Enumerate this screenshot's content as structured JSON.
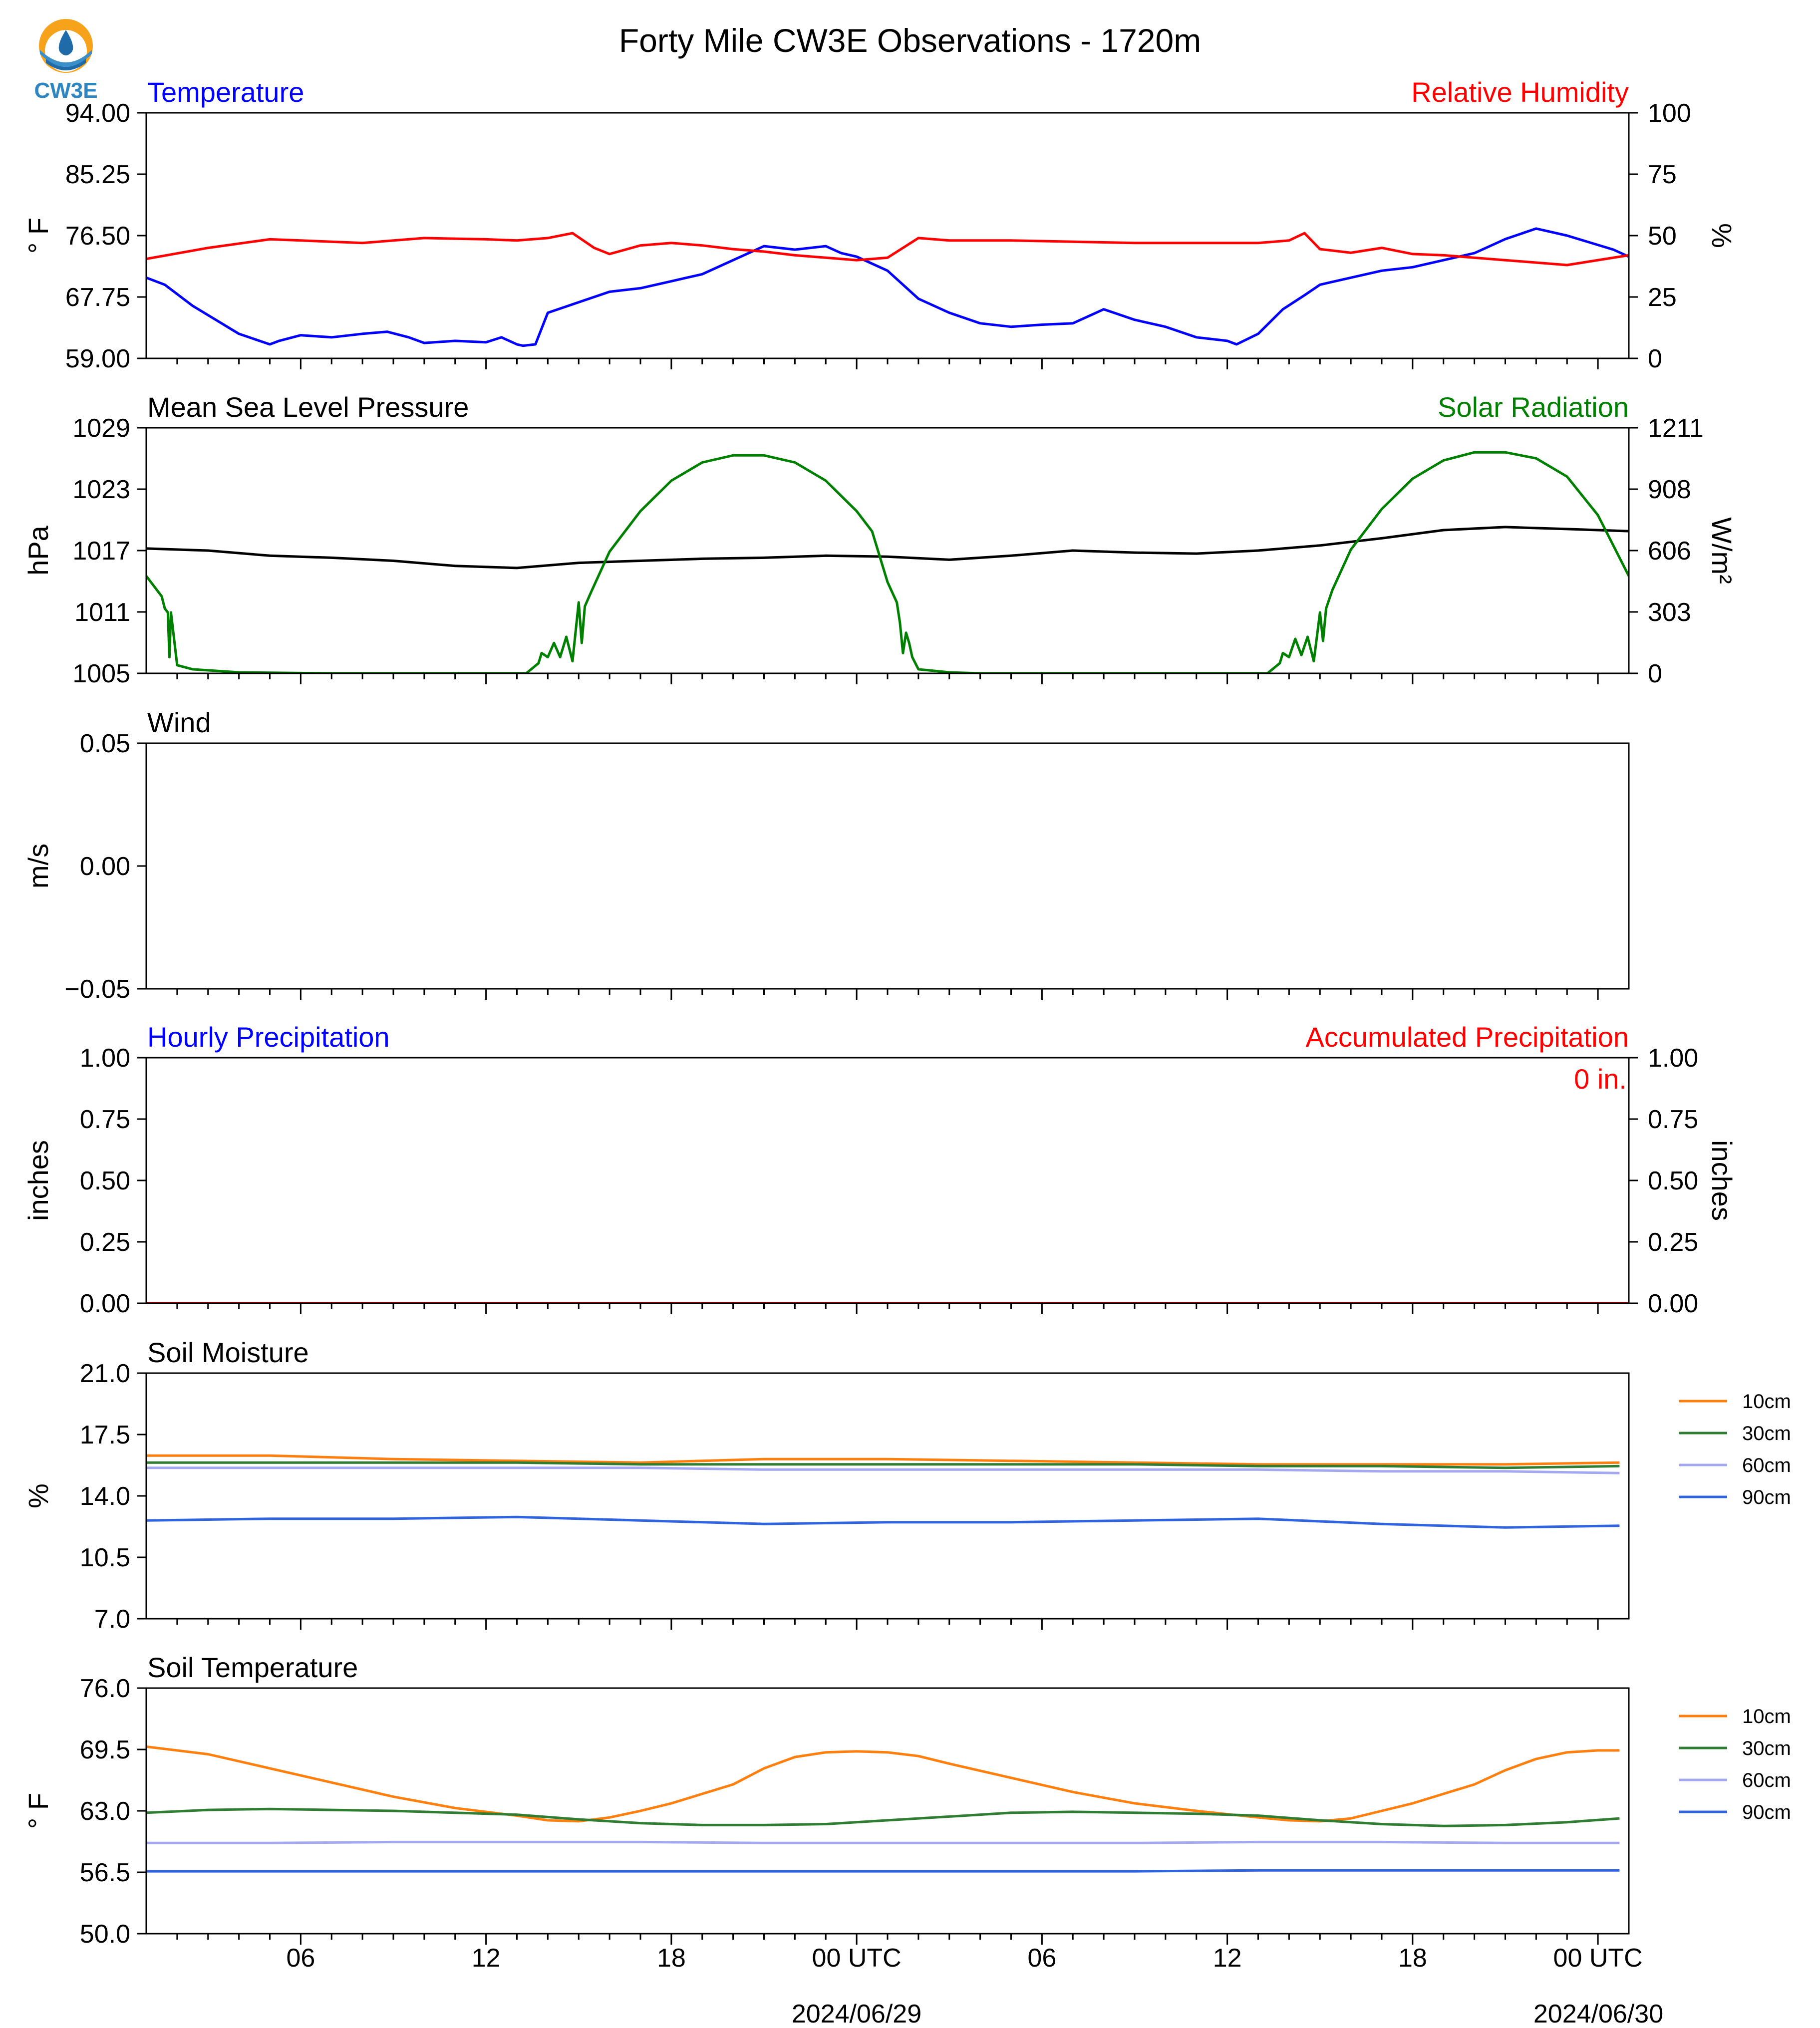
{
  "figure": {
    "title": "Forty Mile CW3E Observations - 1720m",
    "logo_text": "CW3E"
  },
  "time_axis": {
    "x_range_hours": [
      0,
      48
    ],
    "tick_labels": [
      "06",
      "12",
      "18",
      "00 UTC",
      "06",
      "12",
      "18",
      "00 UTC"
    ],
    "tick_hours": [
      5,
      11,
      17,
      23,
      29,
      35,
      41,
      47
    ],
    "date_labels": [
      "2024/06/29",
      "2024/06/30"
    ],
    "date_label_hours": [
      23,
      47
    ]
  },
  "colors": {
    "temperature": "#0000ff",
    "humidity": "#ff0000",
    "pressure": "#000000",
    "solar": "#008000",
    "depth_10cm": "#ff7f0e",
    "depth_30cm": "#2e7d32",
    "depth_60cm": "#a4a8f0",
    "depth_90cm": "#2f63e0"
  },
  "chart_data": [
    {
      "id": "temperature_rh",
      "type": "line",
      "title_left": "Temperature",
      "title_right": "Relative Humidity",
      "ylabel_left": "° F",
      "ylabel_right": "%",
      "ylim_left": [
        59.0,
        94.0
      ],
      "ylim_right": [
        0,
        100
      ],
      "yticks_left": [
        "59.00",
        "67.75",
        "76.50",
        "85.25",
        "94.00"
      ],
      "yticks_right": [
        "0",
        "25",
        "50",
        "75",
        "100"
      ],
      "series": [
        {
          "name": "Temperature",
          "axis": "left",
          "color_key": "temperature",
          "x": [
            0,
            0.6,
            1.5,
            3,
            4,
            4.3,
            5,
            6,
            7,
            7.8,
            8.5,
            9,
            10,
            11,
            11.5,
            12,
            12.2,
            12.6,
            13,
            14,
            15,
            16,
            17,
            17.5,
            18,
            19,
            20,
            21,
            22,
            22.5,
            23,
            24,
            25,
            26,
            27,
            28,
            29,
            30,
            30.5,
            31,
            32,
            33,
            34,
            35,
            35.3,
            36,
            36.8,
            37.5,
            38,
            39,
            40,
            41,
            42,
            43,
            43.5,
            44,
            45,
            46,
            47.5,
            48
          ],
          "y": [
            70.5,
            69.5,
            66.5,
            62.5,
            61.0,
            61.5,
            62.3,
            62.0,
            62.5,
            62.8,
            62.0,
            61.2,
            61.5,
            61.3,
            62.0,
            61.0,
            60.8,
            61.0,
            65.5,
            67.0,
            68.5,
            69.0,
            70.0,
            70.5,
            71.0,
            73.0,
            75.0,
            74.5,
            75.0,
            74.0,
            73.5,
            71.5,
            67.5,
            65.5,
            64.0,
            63.5,
            63.8,
            64.0,
            65.0,
            66.0,
            64.5,
            63.5,
            62.0,
            61.5,
            61.0,
            62.5,
            66.0,
            68.0,
            69.5,
            70.5,
            71.5,
            72.0,
            73.0,
            74.0,
            75.0,
            76.0,
            77.5,
            76.5,
            74.5,
            73.5
          ]
        },
        {
          "name": "Relative Humidity",
          "axis": "right",
          "color_key": "humidity",
          "x": [
            0,
            2,
            4,
            5,
            7,
            9,
            11,
            12,
            13,
            13.8,
            14.5,
            15,
            16,
            17,
            18,
            19,
            20,
            21,
            22,
            23,
            24,
            25,
            26,
            28,
            30,
            32,
            34,
            36,
            37,
            37.5,
            38,
            39,
            40,
            41,
            42,
            44,
            46,
            48
          ],
          "y": [
            40.5,
            45.0,
            48.5,
            48.0,
            47.0,
            49.0,
            48.5,
            48.0,
            49.0,
            51.0,
            45.0,
            42.5,
            46.0,
            47.0,
            46.0,
            44.5,
            43.5,
            42.0,
            41.0,
            40.0,
            41.0,
            49.0,
            48.0,
            48.0,
            47.5,
            47.0,
            47.0,
            47.0,
            48.0,
            51.0,
            44.5,
            43.0,
            45.0,
            42.5,
            42.0,
            40.0,
            38.0,
            42.0
          ]
        }
      ]
    },
    {
      "id": "pressure_solar",
      "type": "line",
      "title_left": "Mean Sea Level Pressure",
      "title_right": "Solar Radiation",
      "ylabel_left": "hPa",
      "ylabel_right": "W/m²",
      "ylim_left": [
        1005,
        1029
      ],
      "ylim_right": [
        0,
        1211
      ],
      "yticks_left": [
        "1005",
        "1011",
        "1017",
        "1023",
        "1029"
      ],
      "yticks_right": [
        "0",
        "303",
        "606",
        "908",
        "1211"
      ],
      "series": [
        {
          "name": "Mean Sea Level Pressure",
          "axis": "left",
          "color_key": "pressure",
          "x": [
            0,
            2,
            4,
            6,
            8,
            10,
            12,
            14,
            16,
            18,
            20,
            22,
            24,
            26,
            28,
            30,
            32,
            34,
            36,
            38,
            40,
            42,
            44,
            46,
            48
          ],
          "y": [
            1017.2,
            1017.0,
            1016.5,
            1016.3,
            1016.0,
            1015.5,
            1015.3,
            1015.8,
            1016.0,
            1016.2,
            1016.3,
            1016.5,
            1016.4,
            1016.1,
            1016.5,
            1017.0,
            1016.8,
            1016.7,
            1017.0,
            1017.5,
            1018.2,
            1019.0,
            1019.3,
            1019.1,
            1018.9
          ]
        },
        {
          "name": "Solar Radiation",
          "axis": "right",
          "color_key": "solar",
          "x": [
            0,
            0.5,
            0.6,
            0.7,
            0.75,
            0.8,
            1.0,
            1.5,
            3,
            6,
            9,
            11,
            12,
            12.3,
            12.7,
            12.8,
            13.0,
            13.2,
            13.4,
            13.6,
            13.8,
            14.0,
            14.1,
            14.2,
            14.4,
            15,
            16,
            17,
            18,
            19,
            20,
            21,
            22,
            23,
            23.5,
            24,
            24.3,
            24.4,
            24.5,
            24.6,
            24.7,
            24.8,
            25,
            26,
            27,
            30,
            33,
            35,
            36,
            36.3,
            36.7,
            36.8,
            37.0,
            37.2,
            37.4,
            37.6,
            37.8,
            38.0,
            38.1,
            38.2,
            38.4,
            39,
            40,
            41,
            42,
            43,
            44,
            45,
            46,
            47,
            48
          ],
          "y": [
            480,
            380,
            320,
            300,
            80,
            300,
            40,
            20,
            5,
            0,
            0,
            0,
            0,
            0,
            50,
            100,
            80,
            150,
            80,
            180,
            60,
            350,
            150,
            330,
            400,
            600,
            800,
            950,
            1040,
            1075,
            1075,
            1040,
            950,
            800,
            700,
            450,
            350,
            250,
            100,
            200,
            150,
            80,
            20,
            5,
            0,
            0,
            0,
            0,
            0,
            0,
            50,
            100,
            80,
            170,
            90,
            180,
            60,
            300,
            160,
            320,
            410,
            610,
            810,
            960,
            1050,
            1090,
            1090,
            1060,
            970,
            780,
            480
          ]
        }
      ]
    },
    {
      "id": "wind",
      "type": "line",
      "title_left": "Wind",
      "ylabel_left": "m/s",
      "ylim_left": [
        -0.055,
        0.055
      ],
      "yticks_left": [
        "−0.05",
        "0.00",
        "0.05"
      ],
      "series": []
    },
    {
      "id": "precipitation",
      "type": "line",
      "title_left": "Hourly Precipitation",
      "title_right": "Accumulated Precipitation",
      "ylabel_left": "inches",
      "ylabel_right": "inches",
      "ylim_left": [
        0,
        1
      ],
      "ylim_right": [
        0,
        1
      ],
      "yticks_left": [
        "0.00",
        "0.25",
        "0.50",
        "0.75",
        "1.00"
      ],
      "yticks_right": [
        "0.00",
        "0.25",
        "0.50",
        "0.75",
        "1.00"
      ],
      "annotation": "0 in.",
      "series": [
        {
          "name": "Hourly Precipitation",
          "axis": "left",
          "color_key": "temperature",
          "x": [
            0,
            48
          ],
          "y": [
            0,
            0
          ]
        },
        {
          "name": "Accumulated Precipitation",
          "axis": "right",
          "color_key": "humidity",
          "x": [
            0,
            48
          ],
          "y": [
            0,
            0
          ]
        }
      ]
    },
    {
      "id": "soil_moisture",
      "type": "line",
      "title_left": "Soil Moisture",
      "ylabel_left": "%",
      "ylim_left": [
        7.0,
        21.0
      ],
      "yticks_left": [
        "7.0",
        "10.5",
        "14.0",
        "17.5",
        "21.0"
      ],
      "legend": [
        "10cm",
        "30cm",
        "60cm",
        "90cm"
      ],
      "series": [
        {
          "name": "10cm",
          "color_key": "depth_10cm",
          "x": [
            0,
            4,
            8,
            12,
            16,
            20,
            24,
            28,
            32,
            36,
            40,
            44,
            47.7
          ],
          "y": [
            16.3,
            16.3,
            16.1,
            16.0,
            15.9,
            16.1,
            16.1,
            16.0,
            15.9,
            15.8,
            15.8,
            15.8,
            15.9
          ]
        },
        {
          "name": "30cm",
          "color_key": "depth_30cm",
          "x": [
            0,
            4,
            8,
            12,
            16,
            20,
            24,
            28,
            32,
            36,
            40,
            44,
            47.7
          ],
          "y": [
            15.9,
            15.9,
            15.9,
            15.9,
            15.8,
            15.8,
            15.8,
            15.8,
            15.8,
            15.7,
            15.7,
            15.6,
            15.7
          ]
        },
        {
          "name": "60cm",
          "color_key": "depth_60cm",
          "x": [
            0,
            4,
            8,
            12,
            16,
            20,
            24,
            28,
            32,
            36,
            40,
            44,
            47.7
          ],
          "y": [
            15.6,
            15.6,
            15.6,
            15.6,
            15.6,
            15.5,
            15.5,
            15.5,
            15.5,
            15.5,
            15.4,
            15.4,
            15.3
          ]
        },
        {
          "name": "90cm",
          "color_key": "depth_90cm",
          "x": [
            0,
            4,
            8,
            12,
            16,
            20,
            24,
            28,
            32,
            36,
            40,
            44,
            47.7
          ],
          "y": [
            12.6,
            12.7,
            12.7,
            12.8,
            12.6,
            12.4,
            12.5,
            12.5,
            12.6,
            12.7,
            12.4,
            12.2,
            12.3
          ]
        }
      ]
    },
    {
      "id": "soil_temperature",
      "type": "line",
      "title_left": "Soil Temperature",
      "ylabel_left": "° F",
      "ylim_left": [
        50.0,
        76.0
      ],
      "yticks_left": [
        "50.0",
        "56.5",
        "63.0",
        "69.5",
        "76.0"
      ],
      "legend": [
        "10cm",
        "30cm",
        "60cm",
        "90cm"
      ],
      "series": [
        {
          "name": "10cm",
          "color_key": "depth_10cm",
          "x": [
            0,
            2,
            4,
            6,
            8,
            10,
            12,
            13,
            14,
            15,
            16,
            17,
            18,
            19,
            20,
            21,
            22,
            23,
            24,
            25,
            26,
            28,
            30,
            32,
            34,
            36,
            37,
            38,
            39,
            40,
            41,
            42,
            43,
            44,
            45,
            46,
            47,
            47.7
          ],
          "y": [
            69.8,
            69.0,
            67.5,
            66.0,
            64.5,
            63.3,
            62.5,
            62.0,
            61.9,
            62.3,
            63.0,
            63.8,
            64.8,
            65.8,
            67.5,
            68.7,
            69.2,
            69.3,
            69.2,
            68.8,
            68.0,
            66.5,
            65.0,
            63.8,
            63.0,
            62.3,
            62.0,
            61.9,
            62.2,
            63.0,
            63.8,
            64.8,
            65.8,
            67.3,
            68.5,
            69.2,
            69.4,
            69.4
          ]
        },
        {
          "name": "30cm",
          "color_key": "depth_30cm",
          "x": [
            0,
            2,
            4,
            6,
            8,
            10,
            12,
            14,
            16,
            18,
            20,
            22,
            24,
            26,
            28,
            30,
            32,
            34,
            36,
            38,
            40,
            42,
            44,
            46,
            47.7
          ],
          "y": [
            62.8,
            63.1,
            63.2,
            63.1,
            63.0,
            62.8,
            62.6,
            62.1,
            61.7,
            61.5,
            61.5,
            61.6,
            62.0,
            62.4,
            62.8,
            62.9,
            62.8,
            62.7,
            62.5,
            62.0,
            61.6,
            61.4,
            61.5,
            61.8,
            62.2
          ]
        },
        {
          "name": "60cm",
          "color_key": "depth_60cm",
          "x": [
            0,
            4,
            8,
            12,
            16,
            20,
            24,
            28,
            32,
            36,
            40,
            44,
            47.7
          ],
          "y": [
            59.6,
            59.6,
            59.7,
            59.7,
            59.7,
            59.6,
            59.6,
            59.6,
            59.6,
            59.7,
            59.7,
            59.6,
            59.6
          ]
        },
        {
          "name": "90cm",
          "color_key": "depth_90cm",
          "x": [
            0,
            4,
            8,
            12,
            16,
            20,
            24,
            28,
            32,
            36,
            40,
            44,
            47.7
          ],
          "y": [
            56.6,
            56.6,
            56.6,
            56.6,
            56.6,
            56.6,
            56.6,
            56.6,
            56.6,
            56.7,
            56.7,
            56.7,
            56.7
          ]
        }
      ]
    }
  ]
}
